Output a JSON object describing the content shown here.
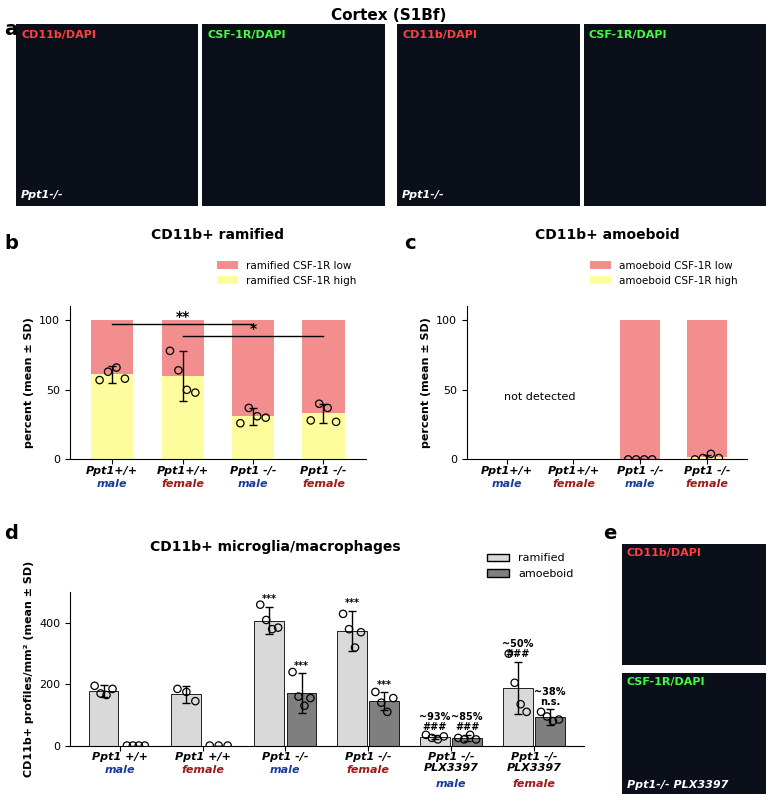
{
  "title": "Cortex (S1Bf)",
  "panel_labels": [
    "a",
    "b",
    "c",
    "d",
    "e"
  ],
  "images": [
    {
      "panel": "a",
      "channels": [
        "CD11b/DAPI",
        "CSF-1R/DAPI"
      ],
      "genotype": "Ppt1-/-"
    },
    {
      "panel": "a",
      "channels": [
        "CD11b/DAPI",
        "CSF-1R/DAPI"
      ],
      "genotype": "Ppt1-/-"
    },
    {
      "panel": "e",
      "channels": [
        "CD11b/DAPI",
        "CSF-1R/DAPI"
      ],
      "genotype": "Ppt1-/- PLX3397"
    }
  ],
  "chart_data": [
    {
      "type": "bar",
      "stacked": true,
      "title": "CD11b+ ramified",
      "categories": [
        "Ppt1+/+\nmale",
        "Ppt1+/+\nfemale",
        "Ppt1 -/-\nmale",
        "Ppt1 -/-\nfemale"
      ],
      "ylabel": "percent (mean ± SD)",
      "ylim": [
        0,
        110
      ],
      "yticks": [
        0,
        50,
        100
      ],
      "legend": "upper right",
      "series": [
        {
          "name": "ramified CSF-1R high",
          "color": "#fdfd9e",
          "values": [
            61,
            60,
            31,
            33
          ],
          "errors": [
            6,
            18,
            6,
            7
          ],
          "points": [
            [
              57,
              63,
              66,
              58
            ],
            [
              78,
              64,
              50,
              48
            ],
            [
              26,
              37,
              31,
              30
            ],
            [
              28,
              40,
              37,
              27
            ]
          ]
        },
        {
          "name": "ramified CSF-1R low",
          "color": "#f28e8e",
          "values": [
            39,
            40,
            69,
            67
          ]
        }
      ],
      "significance": [
        {
          "from": 0,
          "to": 2,
          "text": "**",
          "y": 97
        },
        {
          "from": 1,
          "to": 3,
          "text": "*",
          "y": 89
        }
      ]
    },
    {
      "type": "bar",
      "stacked": true,
      "title": "CD11b+ amoeboid",
      "categories": [
        "Ppt1+/+\nmale",
        "Ppt1+/+\nfemale",
        "Ppt1 -/-\nmale",
        "Ppt1 -/-\nfemale"
      ],
      "ylabel": "percent (mean ± SD)",
      "ylim": [
        0,
        110
      ],
      "yticks": [
        0,
        50,
        100
      ],
      "legend": "upper right",
      "series": [
        {
          "name": "amoeboid CSF-1R high",
          "color": "#fdfd9e",
          "values": [
            null,
            null,
            0,
            1.5
          ],
          "errors": [
            null,
            null,
            0,
            2
          ],
          "points": [
            [],
            [],
            [
              0,
              0,
              0,
              0
            ],
            [
              0,
              1,
              4,
              1
            ]
          ]
        },
        {
          "name": "amoeboid CSF-1R low",
          "color": "#f28e8e",
          "values": [
            null,
            null,
            100,
            98.5
          ]
        }
      ],
      "annotations": [
        {
          "text": "not detected",
          "x": 0.5,
          "y": 45
        }
      ]
    },
    {
      "type": "bar",
      "title": "CD11b+ microglia/macrophages",
      "categories": [
        "Ppt1 +/+\nmale",
        "Ppt1 +/+\nfemale",
        "Ppt1 -/-\nmale",
        "Ppt1 -/-\nfemale",
        "Ppt1 -/-\nPLX3397\nmale",
        "Ppt1 -/-\nPLX3397\nfemale"
      ],
      "ylabel": "CD11b+ profiles/mm² (mean ± SD)",
      "ylim": [
        0,
        500
      ],
      "yticks": [
        0,
        200,
        400
      ],
      "legend": "upper right",
      "series": [
        {
          "name": "ramified",
          "color": "#d9d9d9",
          "values": [
            178,
            168,
            408,
            375,
            28,
            188
          ],
          "errors": [
            20,
            28,
            45,
            65,
            8,
            85
          ],
          "points": [
            [
              195,
              170,
              165,
              185
            ],
            [
              185,
              175,
              145
            ],
            [
              460,
              410,
              380,
              385
            ],
            [
              430,
              380,
              320,
              370
            ],
            [
              35,
              25,
              20,
              30
            ],
            [
              300,
              205,
              135,
              110
            ]
          ]
        },
        {
          "name": "amoeboid",
          "color": "#7f7f7f",
          "values": [
            0,
            0,
            172,
            145,
            25,
            93
          ],
          "errors": [
            0,
            0,
            65,
            30,
            10,
            25
          ],
          "points": [
            [
              0,
              0,
              0,
              0
            ],
            [
              0,
              0,
              0
            ],
            [
              240,
              160,
              130,
              155
            ],
            [
              175,
              140,
              110,
              155
            ],
            [
              25,
              20,
              35,
              20
            ],
            [
              110,
              95,
              80,
              85
            ]
          ]
        }
      ],
      "annotations": [
        {
          "category": 2,
          "series": "ramified",
          "text": "***"
        },
        {
          "category": 2,
          "series": "amoeboid",
          "text": "***"
        },
        {
          "category": 3,
          "series": "ramified",
          "text": "***"
        },
        {
          "category": 3,
          "series": "amoeboid",
          "text": "***"
        },
        {
          "category": 4,
          "series": "ramified",
          "text": "~93%\n###"
        },
        {
          "category": 4,
          "series": "amoeboid",
          "text": "~85%\n###"
        },
        {
          "category": 5,
          "series": "ramified",
          "text": "~50%\n###"
        },
        {
          "category": 5,
          "series": "amoeboid",
          "text": "~38%\nn.s."
        }
      ]
    }
  ]
}
